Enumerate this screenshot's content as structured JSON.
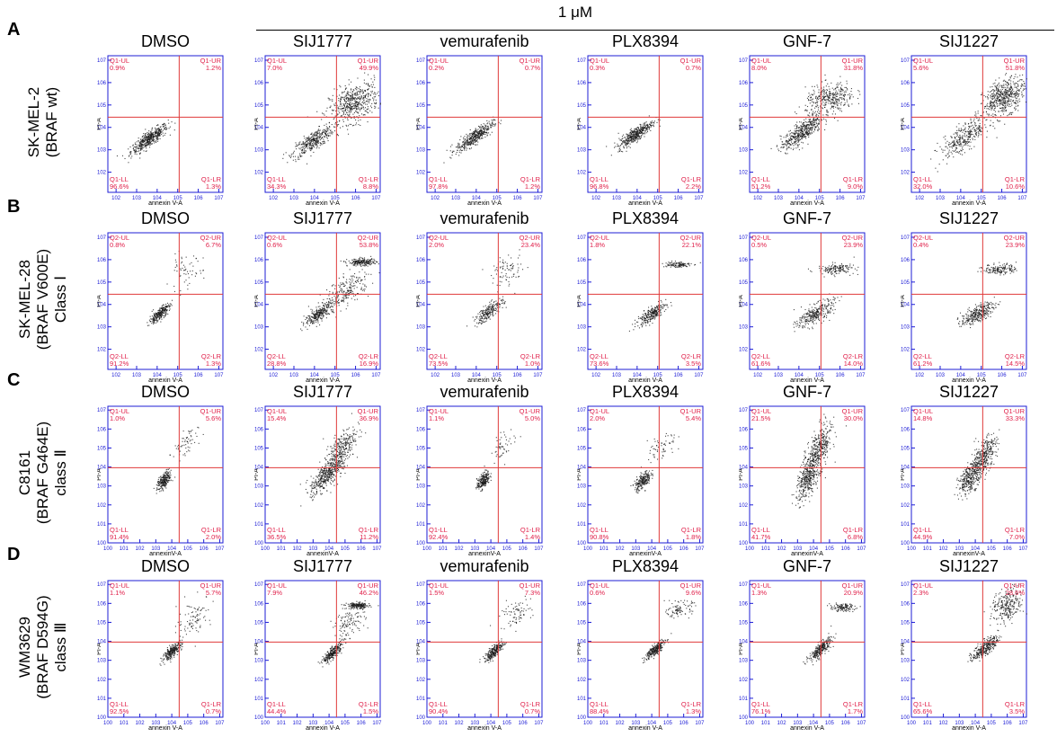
{
  "figure": {
    "concentration_label": "1 μM",
    "colors": {
      "quadrant_line": "#e03a3a",
      "quadrant_text": "#e0204a",
      "axis": "#1c1cd6",
      "dots": "#1a1a1a"
    }
  },
  "chart_data": [
    {
      "type": "scatter",
      "row": "A",
      "title": "DMSO",
      "quadrant_prefix": "Q1",
      "cell_line": [
        "SK-MEL-2",
        "(BRAF wt)"
      ],
      "xlabel": "annexin V-A",
      "ylabel": "PI-A",
      "xlim": [
        1.6,
        7.2
      ],
      "ylim": [
        1.1,
        7.2
      ],
      "x_ticks": [
        "10^1.6",
        "10^2",
        "10^3",
        "10^4",
        "10^5",
        "10^6",
        "10^7.2"
      ],
      "y_ticks": [
        "10^1.1",
        "10^2",
        "10^3",
        "10^4",
        "10^5",
        "10^6",
        "10^7.2"
      ],
      "quadrants": {
        "UL": "0.9%",
        "UR": "1.2%",
        "LL": "96.6%",
        "LR": "1.3%"
      },
      "clusters": [
        {
          "x": 3.6,
          "y": 3.5,
          "sx": 0.45,
          "sy": 0.32,
          "n": 460,
          "corr": 0.85
        }
      ]
    },
    {
      "type": "scatter",
      "row": "A",
      "title": "SIJ1777",
      "quadrant_prefix": "Q1",
      "xlabel": "annexin V-A",
      "ylabel": "PI-A",
      "xlim": [
        1.6,
        7.2
      ],
      "ylim": [
        1.1,
        7.2
      ],
      "quadrants": {
        "UL": "7.0%",
        "UR": "49.9%",
        "LL": "34.3%",
        "LR": "8.8%"
      },
      "clusters": [
        {
          "x": 3.9,
          "y": 3.4,
          "sx": 0.5,
          "sy": 0.35,
          "n": 360,
          "corr": 0.8
        },
        {
          "x": 5.9,
          "y": 5.1,
          "sx": 0.6,
          "sy": 0.45,
          "n": 520,
          "corr": 0.4
        }
      ]
    },
    {
      "type": "scatter",
      "row": "A",
      "title": "vemurafenib",
      "quadrant_prefix": "Q1",
      "xlabel": "annexin V-A",
      "ylabel": "PI-A",
      "xlim": [
        1.6,
        7.2
      ],
      "ylim": [
        1.1,
        7.2
      ],
      "quadrants": {
        "UL": "0.2%",
        "UR": "0.7%",
        "LL": "97.8%",
        "LR": "1.2%"
      },
      "clusters": [
        {
          "x": 3.9,
          "y": 3.6,
          "sx": 0.45,
          "sy": 0.32,
          "n": 420,
          "corr": 0.85
        }
      ]
    },
    {
      "type": "scatter",
      "row": "A",
      "title": "PLX8394",
      "quadrant_prefix": "Q1",
      "xlabel": "annexin V-A",
      "ylabel": "PI-A",
      "xlim": [
        1.6,
        7.2
      ],
      "ylim": [
        1.1,
        7.2
      ],
      "quadrants": {
        "UL": "0.3%",
        "UR": "0.7%",
        "LL": "96.8%",
        "LR": "2.2%"
      },
      "clusters": [
        {
          "x": 3.9,
          "y": 3.7,
          "sx": 0.42,
          "sy": 0.3,
          "n": 420,
          "corr": 0.85
        }
      ]
    },
    {
      "type": "scatter",
      "row": "A",
      "title": "GNF-7",
      "quadrant_prefix": "Q1",
      "xlabel": "annexin V-A",
      "ylabel": "PI-A",
      "xlim": [
        1.6,
        7.2
      ],
      "ylim": [
        1.1,
        7.2
      ],
      "quadrants": {
        "UL": "8.0%",
        "UR": "31.8%",
        "LL": "51.2%",
        "LR": "9.0%"
      },
      "clusters": [
        {
          "x": 4.1,
          "y": 3.8,
          "sx": 0.5,
          "sy": 0.4,
          "n": 460,
          "corr": 0.8
        },
        {
          "x": 5.5,
          "y": 5.3,
          "sx": 0.6,
          "sy": 0.35,
          "n": 360,
          "corr": 0.3
        }
      ]
    },
    {
      "type": "scatter",
      "row": "A",
      "title": "SIJ1227",
      "quadrant_prefix": "Q1",
      "xlabel": "annexin V-A",
      "ylabel": "PI-A",
      "xlim": [
        1.6,
        7.2
      ],
      "ylim": [
        1.1,
        7.2
      ],
      "quadrants": {
        "UL": "5.6%",
        "UR": "51.8%",
        "LL": "32.0%",
        "LR": "10.6%"
      },
      "clusters": [
        {
          "x": 4.2,
          "y": 3.6,
          "sx": 0.6,
          "sy": 0.45,
          "n": 340,
          "corr": 0.75
        },
        {
          "x": 6.1,
          "y": 5.4,
          "sx": 0.5,
          "sy": 0.4,
          "n": 520,
          "corr": 0.4
        }
      ]
    },
    {
      "type": "scatter",
      "row": "B",
      "title": "DMSO",
      "quadrant_prefix": "Q2",
      "cell_line": [
        "SK-MEL-28",
        "(BRAF V600E)",
        "Class Ⅰ"
      ],
      "xlabel": "annexin V-A",
      "ylabel": "PI-A",
      "xlim": [
        1.6,
        7.2
      ],
      "ylim": [
        1.1,
        7.2
      ],
      "quadrants": {
        "UL": "0.8%",
        "UR": "6.7%",
        "LL": "91.2%",
        "LR": "1.3%"
      },
      "clusters": [
        {
          "x": 4.1,
          "y": 3.6,
          "sx": 0.25,
          "sy": 0.22,
          "n": 260,
          "corr": 0.8
        },
        {
          "x": 5.3,
          "y": 5.4,
          "sx": 0.45,
          "sy": 0.4,
          "n": 60,
          "corr": 0.3
        }
      ]
    },
    {
      "type": "scatter",
      "row": "B",
      "title": "SIJ1777",
      "quadrant_prefix": "Q2",
      "xlabel": "annexin V-A",
      "ylabel": "PI-A",
      "xlim": [
        1.6,
        7.2
      ],
      "ylim": [
        1.1,
        7.2
      ],
      "quadrants": {
        "UL": "0.6%",
        "UR": "53.8%",
        "LL": "28.8%",
        "LR": "16.9%"
      },
      "clusters": [
        {
          "x": 4.2,
          "y": 3.6,
          "sx": 0.35,
          "sy": 0.25,
          "n": 260,
          "corr": 0.8
        },
        {
          "x": 5.5,
          "y": 4.6,
          "sx": 0.6,
          "sy": 0.45,
          "n": 240,
          "corr": 0.7
        },
        {
          "x": 6.3,
          "y": 5.9,
          "sx": 0.35,
          "sy": 0.08,
          "n": 200,
          "corr": 0
        }
      ]
    },
    {
      "type": "scatter",
      "row": "B",
      "title": "vemurafenib",
      "quadrant_prefix": "Q2",
      "xlabel": "annexin V-A",
      "ylabel": "PI-A",
      "xlim": [
        1.6,
        7.2
      ],
      "ylim": [
        1.1,
        7.2
      ],
      "quadrants": {
        "UL": "2.0%",
        "UR": "23.4%",
        "LL": "73.5%",
        "LR": "1.0%"
      },
      "clusters": [
        {
          "x": 4.6,
          "y": 3.7,
          "sx": 0.35,
          "sy": 0.28,
          "n": 220,
          "corr": 0.8
        },
        {
          "x": 5.5,
          "y": 5.5,
          "sx": 0.4,
          "sy": 0.35,
          "n": 80,
          "corr": 0.3
        }
      ]
    },
    {
      "type": "scatter",
      "row": "B",
      "title": "PLX8394",
      "quadrant_prefix": "Q2",
      "xlabel": "annexin V-A",
      "ylabel": "PI-A",
      "xlim": [
        1.6,
        7.2
      ],
      "ylim": [
        1.1,
        7.2
      ],
      "quadrants": {
        "UL": "1.8%",
        "UR": "22.1%",
        "LL": "73.6%",
        "LR": "3.5%"
      },
      "clusters": [
        {
          "x": 4.7,
          "y": 3.6,
          "sx": 0.35,
          "sy": 0.25,
          "n": 260,
          "corr": 0.8
        },
        {
          "x": 5.9,
          "y": 5.8,
          "sx": 0.35,
          "sy": 0.07,
          "n": 110,
          "corr": 0
        }
      ]
    },
    {
      "type": "scatter",
      "row": "B",
      "title": "GNF-7",
      "quadrant_prefix": "Q2",
      "xlabel": "annexin V-A",
      "ylabel": "PI-A",
      "xlim": [
        1.6,
        7.2
      ],
      "ylim": [
        1.1,
        7.2
      ],
      "quadrants": {
        "UL": "0.5%",
        "UR": "23.9%",
        "LL": "61.6%",
        "LR": "14.0%"
      },
      "clusters": [
        {
          "x": 4.8,
          "y": 3.6,
          "sx": 0.45,
          "sy": 0.3,
          "n": 300,
          "corr": 0.7
        },
        {
          "x": 5.8,
          "y": 5.6,
          "sx": 0.45,
          "sy": 0.12,
          "n": 150,
          "corr": 0.1
        }
      ]
    },
    {
      "type": "scatter",
      "row": "B",
      "title": "SIJ1227",
      "quadrant_prefix": "Q2",
      "xlabel": "annexin V-A",
      "ylabel": "PI-A",
      "xlim": [
        1.6,
        7.2
      ],
      "ylim": [
        1.1,
        7.2
      ],
      "quadrants": {
        "UL": "0.4%",
        "UR": "23.9%",
        "LL": "61.2%",
        "LR": "14.5%"
      },
      "clusters": [
        {
          "x": 4.8,
          "y": 3.6,
          "sx": 0.4,
          "sy": 0.25,
          "n": 300,
          "corr": 0.7
        },
        {
          "x": 5.9,
          "y": 5.6,
          "sx": 0.4,
          "sy": 0.12,
          "n": 150,
          "corr": 0.1
        }
      ]
    },
    {
      "type": "scatter",
      "row": "C",
      "title": "DMSO",
      "quadrant_prefix": "Q1",
      "cell_line": [
        "C8161",
        "(BRAF G464E)",
        "class Ⅱ"
      ],
      "xlabel": "annexinV-A",
      "ylabel": "PI-A",
      "xlim": [
        0,
        7.2
      ],
      "ylim": [
        0,
        7.2
      ],
      "x_ticks": [
        "10^0",
        "10^1",
        "10^2",
        "10^3",
        "10^4",
        "10^5",
        "10^6",
        "10^7.2"
      ],
      "quadrants": {
        "UL": "1.0%",
        "UR": "5.6%",
        "LL": "91.4%",
        "LR": "2.0%"
      },
      "clusters": [
        {
          "x": 3.5,
          "y": 3.3,
          "sx": 0.22,
          "sy": 0.25,
          "n": 240,
          "corr": 0.6
        },
        {
          "x": 4.8,
          "y": 5.2,
          "sx": 0.4,
          "sy": 0.45,
          "n": 60,
          "corr": 0.5
        }
      ]
    },
    {
      "type": "scatter",
      "row": "C",
      "title": "SIJ1777",
      "quadrant_prefix": "Q1",
      "xlabel": "annexinV-A",
      "ylabel": "PI-A",
      "xlim": [
        0,
        7.2
      ],
      "ylim": [
        0,
        7.2
      ],
      "quadrants": {
        "UL": "15.4%",
        "UR": "36.9%",
        "LL": "36.5%",
        "LR": "11.2%"
      },
      "clusters": [
        {
          "x": 3.7,
          "y": 3.5,
          "sx": 0.45,
          "sy": 0.45,
          "n": 320,
          "corr": 0.7
        },
        {
          "x": 4.6,
          "y": 4.7,
          "sx": 0.5,
          "sy": 0.7,
          "n": 380,
          "corr": 0.7
        }
      ]
    },
    {
      "type": "scatter",
      "row": "C",
      "title": "vemurafenib",
      "quadrant_prefix": "Q1",
      "xlabel": "annexinV-A",
      "ylabel": "PI-A",
      "xlim": [
        0,
        7.2
      ],
      "ylim": [
        0,
        7.2
      ],
      "quadrants": {
        "UL": "1.1%",
        "UR": "5.0%",
        "LL": "92.4%",
        "LR": "1.4%"
      },
      "clusters": [
        {
          "x": 3.5,
          "y": 3.3,
          "sx": 0.2,
          "sy": 0.25,
          "n": 220,
          "corr": 0.6
        },
        {
          "x": 4.8,
          "y": 5.2,
          "sx": 0.4,
          "sy": 0.4,
          "n": 50,
          "corr": 0.5
        }
      ]
    },
    {
      "type": "scatter",
      "row": "C",
      "title": "PLX8394",
      "quadrant_prefix": "Q1",
      "xlabel": "annexinV-A",
      "ylabel": "PI-A",
      "xlim": [
        0,
        7.2
      ],
      "ylim": [
        0,
        7.2
      ],
      "quadrants": {
        "UL": "2.0%",
        "UR": "5.4%",
        "LL": "90.8%",
        "LR": "1.8%"
      },
      "clusters": [
        {
          "x": 3.4,
          "y": 3.3,
          "sx": 0.25,
          "sy": 0.25,
          "n": 220,
          "corr": 0.6
        },
        {
          "x": 4.6,
          "y": 5.0,
          "sx": 0.45,
          "sy": 0.45,
          "n": 60,
          "corr": 0.5
        }
      ]
    },
    {
      "type": "scatter",
      "row": "C",
      "title": "GNF-7",
      "quadrant_prefix": "Q1",
      "xlabel": "annexinV-A",
      "ylabel": "PI-A",
      "xlim": [
        0,
        7.2
      ],
      "ylim": [
        0,
        7.2
      ],
      "quadrants": {
        "UL": "21.5%",
        "UR": "30.0%",
        "LL": "41.7%",
        "LR": "6.8%"
      },
      "clusters": [
        {
          "x": 3.6,
          "y": 3.4,
          "sx": 0.35,
          "sy": 0.55,
          "n": 340,
          "corr": 0.5
        },
        {
          "x": 4.3,
          "y": 4.9,
          "sx": 0.4,
          "sy": 0.7,
          "n": 380,
          "corr": 0.6
        }
      ]
    },
    {
      "type": "scatter",
      "row": "C",
      "title": "SIJ1227",
      "quadrant_prefix": "Q1",
      "xlabel": "annexinV-A",
      "ylabel": "PI-A",
      "xlim": [
        0,
        7.2
      ],
      "ylim": [
        0,
        7.2
      ],
      "quadrants": {
        "UL": "14.8%",
        "UR": "33.3%",
        "LL": "44.9%",
        "LR": "7.0%"
      },
      "clusters": [
        {
          "x": 3.7,
          "y": 3.5,
          "sx": 0.4,
          "sy": 0.45,
          "n": 320,
          "corr": 0.6
        },
        {
          "x": 4.5,
          "y": 4.6,
          "sx": 0.4,
          "sy": 0.55,
          "n": 320,
          "corr": 0.6
        }
      ]
    },
    {
      "type": "scatter",
      "row": "D",
      "title": "DMSO",
      "quadrant_prefix": "Q1",
      "cell_line": [
        "WM3629",
        "(BRAF D594G)",
        "class Ⅲ"
      ],
      "xlabel": "annexin V-A",
      "ylabel": "PI-A",
      "xlim": [
        0,
        7.2
      ],
      "ylim": [
        0,
        7.2
      ],
      "quadrants": {
        "UL": "1.1%",
        "UR": "5.7%",
        "LL": "92.5%",
        "LR": "0.7%"
      },
      "clusters": [
        {
          "x": 4.0,
          "y": 3.5,
          "sx": 0.3,
          "sy": 0.25,
          "n": 260,
          "corr": 0.8
        },
        {
          "x": 5.4,
          "y": 5.3,
          "sx": 0.55,
          "sy": 0.5,
          "n": 90,
          "corr": 0.4
        }
      ]
    },
    {
      "type": "scatter",
      "row": "D",
      "title": "SIJ1777",
      "quadrant_prefix": "Q1",
      "xlabel": "annexin V-A",
      "ylabel": "PI-A",
      "xlim": [
        0,
        7.2
      ],
      "ylim": [
        0,
        7.2
      ],
      "quadrants": {
        "UL": "7.9%",
        "UR": "46.2%",
        "LL": "44.4%",
        "LR": "1.5%"
      },
      "clusters": [
        {
          "x": 4.2,
          "y": 3.4,
          "sx": 0.3,
          "sy": 0.25,
          "n": 260,
          "corr": 0.8
        },
        {
          "x": 5.8,
          "y": 5.9,
          "sx": 0.35,
          "sy": 0.08,
          "n": 180,
          "corr": 0
        },
        {
          "x": 5.2,
          "y": 5.0,
          "sx": 0.5,
          "sy": 0.45,
          "n": 120,
          "corr": 0.5
        }
      ]
    },
    {
      "type": "scatter",
      "row": "D",
      "title": "vemurafenib",
      "quadrant_prefix": "Q1",
      "xlabel": "annexin V-A",
      "ylabel": "PI-A",
      "xlim": [
        0,
        7.2
      ],
      "ylim": [
        0,
        7.2
      ],
      "quadrants": {
        "UL": "1.5%",
        "UR": "7.3%",
        "LL": "90.4%",
        "LR": "0.7%"
      },
      "clusters": [
        {
          "x": 4.2,
          "y": 3.5,
          "sx": 0.3,
          "sy": 0.25,
          "n": 260,
          "corr": 0.8
        },
        {
          "x": 5.5,
          "y": 5.5,
          "sx": 0.5,
          "sy": 0.35,
          "n": 80,
          "corr": 0.3
        }
      ]
    },
    {
      "type": "scatter",
      "row": "D",
      "title": "PLX8394",
      "quadrant_prefix": "Q1",
      "xlabel": "annexin V-A",
      "ylabel": "PI-A",
      "xlim": [
        0,
        7.2
      ],
      "ylim": [
        0,
        7.2
      ],
      "quadrants": {
        "UL": "0.6%",
        "UR": "9.6%",
        "LL": "88.4%",
        "LR": "1.3%"
      },
      "clusters": [
        {
          "x": 4.2,
          "y": 3.6,
          "sx": 0.3,
          "sy": 0.25,
          "n": 260,
          "corr": 0.8
        },
        {
          "x": 5.7,
          "y": 5.7,
          "sx": 0.4,
          "sy": 0.2,
          "n": 90,
          "corr": 0.3
        }
      ]
    },
    {
      "type": "scatter",
      "row": "D",
      "title": "GNF-7",
      "quadrant_prefix": "Q1",
      "xlabel": "annexin V-A",
      "ylabel": "PI-A",
      "xlim": [
        0,
        7.2
      ],
      "ylim": [
        0,
        7.2
      ],
      "quadrants": {
        "UL": "1.3%",
        "UR": "20.9%",
        "LL": "76.1%",
        "LR": "1.7%"
      },
      "clusters": [
        {
          "x": 4.4,
          "y": 3.6,
          "sx": 0.35,
          "sy": 0.3,
          "n": 280,
          "corr": 0.8
        },
        {
          "x": 5.8,
          "y": 5.8,
          "sx": 0.4,
          "sy": 0.1,
          "n": 120,
          "corr": 0.1
        }
      ]
    },
    {
      "type": "scatter",
      "row": "D",
      "title": "SIJ1227",
      "quadrant_prefix": "Q1",
      "xlabel": "annexin V-A",
      "ylabel": "PI-A",
      "xlim": [
        0,
        7.2
      ],
      "ylim": [
        0,
        7.2
      ],
      "quadrants": {
        "UL": "2.3%",
        "UR": "28.6%",
        "LL": "65.6%",
        "LR": "3.5%"
      },
      "clusters": [
        {
          "x": 4.6,
          "y": 3.7,
          "sx": 0.4,
          "sy": 0.3,
          "n": 300,
          "corr": 0.75
        },
        {
          "x": 6.0,
          "y": 5.9,
          "sx": 0.5,
          "sy": 0.45,
          "n": 260,
          "corr": 0.3
        }
      ]
    }
  ]
}
